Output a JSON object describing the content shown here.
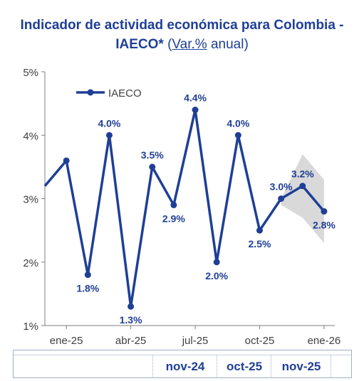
{
  "chart_data": {
    "type": "line",
    "title_line1": "Indicador de actividad económica para Colombia -",
    "title_line2_bold": "IAECO*",
    "title_paren_open": "(",
    "title_unit_underlined": "Var.%",
    "title_unit_rest": " anual)",
    "ylim": [
      1,
      5
    ],
    "yticks": [
      "1%",
      "2%",
      "3%",
      "4%",
      "5%"
    ],
    "xtick_labels": [
      {
        "label": "ene-25",
        "index": 1
      },
      {
        "label": "abr-25",
        "index": 4
      },
      {
        "label": "jul-25",
        "index": 7
      },
      {
        "label": "oct-25",
        "index": 10
      },
      {
        "label": "ene-26",
        "index": 13
      }
    ],
    "series": [
      {
        "name": "IAECO",
        "color": "#1f3f96",
        "values": [
          3.2,
          3.6,
          1.8,
          4.0,
          1.3,
          3.5,
          2.9,
          4.4,
          2.0,
          4.0,
          2.5,
          3.0,
          3.2,
          2.8
        ],
        "labels": [
          "",
          "",
          "1.8%",
          "4.0%",
          "1.3%",
          "3.5%",
          "2.9%",
          "4.4%",
          "2.0%",
          "4.0%",
          "2.5%",
          "3.0%",
          "3.2%",
          "2.8%"
        ]
      }
    ],
    "band": {
      "color": "#d9d9d9",
      "start_index": 11,
      "upper": [
        3.0,
        3.7,
        3.3
      ],
      "lower": [
        2.9,
        2.7,
        2.3
      ]
    },
    "legend": {
      "label": "IAECO",
      "position": "top-left"
    },
    "grid": false
  },
  "footer": {
    "cells": [
      "nov-24",
      "oct-25",
      "nov-25"
    ]
  }
}
